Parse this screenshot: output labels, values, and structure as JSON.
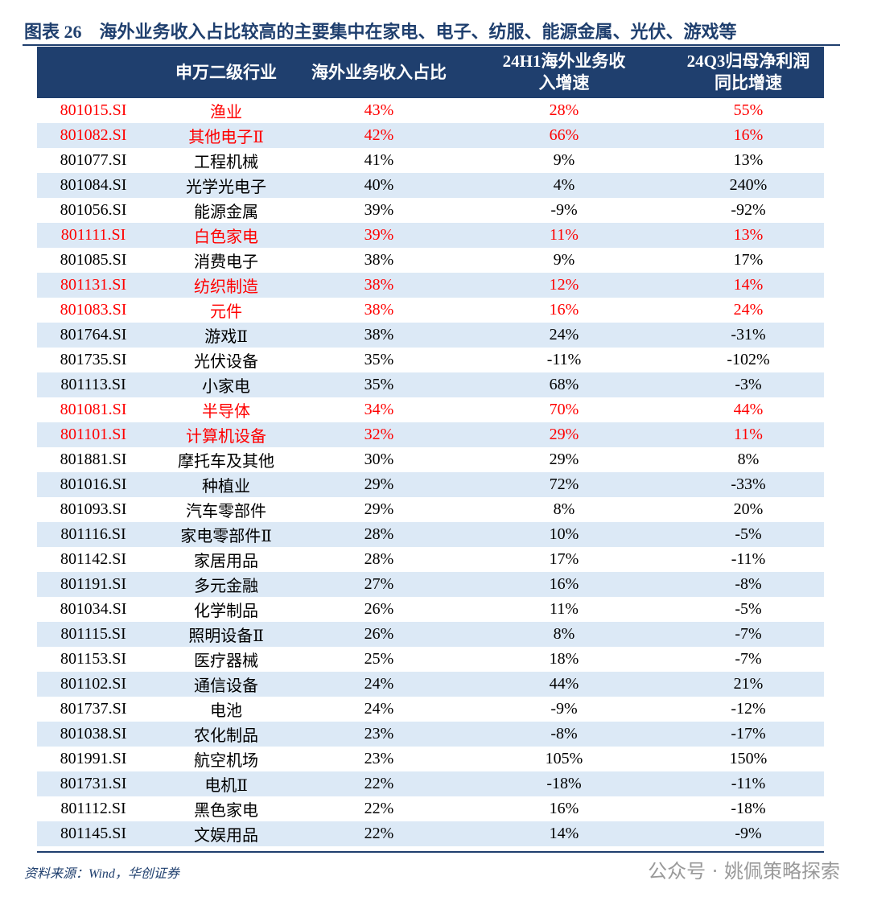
{
  "title": "图表 26　海外业务收入占比较高的主要集中在家电、电子、纺服、能源金属、光伏、游戏等",
  "header": [
    [
      "申万二级行业"
    ],
    [
      "海外业务收入占比"
    ],
    [
      "24H1海外业务收",
      "入增速"
    ],
    [
      "24Q3归母净利润",
      "同比增速"
    ]
  ],
  "rows": [
    {
      "cells": [
        "801015.SI",
        "渔业",
        "43%",
        "28%",
        "55%"
      ],
      "color": "#ff0000"
    },
    {
      "cells": [
        "801082.SI",
        "其他电子Ⅱ",
        "42%",
        "66%",
        "16%"
      ],
      "color": "#ff0000"
    },
    {
      "cells": [
        "801077.SI",
        "工程机械",
        "41%",
        "9%",
        "13%"
      ],
      "color": "#000000"
    },
    {
      "cells": [
        "801084.SI",
        "光学光电子",
        "40%",
        "4%",
        "240%"
      ],
      "color": "#000000"
    },
    {
      "cells": [
        "801056.SI",
        "能源金属",
        "39%",
        "-9%",
        "-92%"
      ],
      "color": "#000000"
    },
    {
      "cells": [
        "801111.SI",
        "白色家电",
        "39%",
        "11%",
        "13%"
      ],
      "color": "#ff0000"
    },
    {
      "cells": [
        "801085.SI",
        "消费电子",
        "38%",
        "9%",
        "17%"
      ],
      "color": "#000000"
    },
    {
      "cells": [
        "801131.SI",
        "纺织制造",
        "38%",
        "12%",
        "14%"
      ],
      "color": "#ff0000"
    },
    {
      "cells": [
        "801083.SI",
        "元件",
        "38%",
        "16%",
        "24%"
      ],
      "color": "#ff0000"
    },
    {
      "cells": [
        "801764.SI",
        "游戏Ⅱ",
        "38%",
        "24%",
        "-31%"
      ],
      "color": "#000000"
    },
    {
      "cells": [
        "801735.SI",
        "光伏设备",
        "35%",
        "-11%",
        "-102%"
      ],
      "color": "#000000"
    },
    {
      "cells": [
        "801113.SI",
        "小家电",
        "35%",
        "68%",
        "-3%"
      ],
      "color": "#000000"
    },
    {
      "cells": [
        "801081.SI",
        "半导体",
        "34%",
        "70%",
        "44%"
      ],
      "color": "#ff0000"
    },
    {
      "cells": [
        "801101.SI",
        "计算机设备",
        "32%",
        "29%",
        "11%"
      ],
      "color": "#ff0000"
    },
    {
      "cells": [
        "801881.SI",
        "摩托车及其他",
        "30%",
        "29%",
        "8%"
      ],
      "color": "#000000"
    },
    {
      "cells": [
        "801016.SI",
        "种植业",
        "29%",
        "72%",
        "-33%"
      ],
      "color": "#000000"
    },
    {
      "cells": [
        "801093.SI",
        "汽车零部件",
        "29%",
        "8%",
        "20%"
      ],
      "color": "#000000"
    },
    {
      "cells": [
        "801116.SI",
        "家电零部件Ⅱ",
        "28%",
        "10%",
        "-5%"
      ],
      "color": "#000000"
    },
    {
      "cells": [
        "801142.SI",
        "家居用品",
        "28%",
        "17%",
        "-11%"
      ],
      "color": "#000000"
    },
    {
      "cells": [
        "801191.SI",
        "多元金融",
        "27%",
        "16%",
        "-8%"
      ],
      "color": "#000000"
    },
    {
      "cells": [
        "801034.SI",
        "化学制品",
        "26%",
        "11%",
        "-5%"
      ],
      "color": "#000000"
    },
    {
      "cells": [
        "801115.SI",
        "照明设备Ⅱ",
        "26%",
        "8%",
        "-7%"
      ],
      "color": "#000000"
    },
    {
      "cells": [
        "801153.SI",
        "医疗器械",
        "25%",
        "18%",
        "-7%"
      ],
      "color": "#000000"
    },
    {
      "cells": [
        "801102.SI",
        "通信设备",
        "24%",
        "44%",
        "21%"
      ],
      "color": "#000000"
    },
    {
      "cells": [
        "801737.SI",
        "电池",
        "24%",
        "-9%",
        "-12%"
      ],
      "color": "#000000"
    },
    {
      "cells": [
        "801038.SI",
        "农化制品",
        "23%",
        "-8%",
        "-17%"
      ],
      "color": "#000000"
    },
    {
      "cells": [
        "801991.SI",
        "航空机场",
        "23%",
        "105%",
        "150%"
      ],
      "color": "#000000"
    },
    {
      "cells": [
        "801731.SI",
        "电机Ⅱ",
        "22%",
        "-18%",
        "-11%"
      ],
      "color": "#000000"
    },
    {
      "cells": [
        "801112.SI",
        "黑色家电",
        "22%",
        "16%",
        "-18%"
      ],
      "color": "#000000"
    },
    {
      "cells": [
        "801145.SI",
        "文娱用品",
        "22%",
        "14%",
        "-9%"
      ],
      "color": "#000000"
    }
  ],
  "source": "资料来源：Wind，华创证券",
  "watermark": "公众号 · 姚佩策略探索"
}
